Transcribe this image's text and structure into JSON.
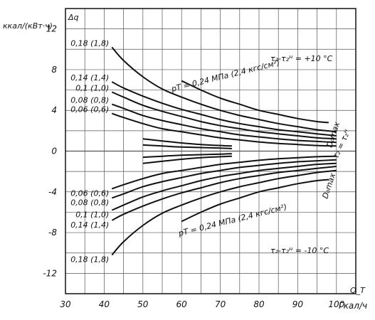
{
  "chart_data": {
    "type": "line",
    "ylabel": "ккал/(кВт·ч)",
    "ysymbol": "Δq",
    "xunit": "Гкал/ч",
    "xsymbol": "Q_T",
    "xlim": [
      30,
      105
    ],
    "ylim": [
      -14,
      14
    ],
    "xticks": [
      "30",
      "40",
      "50",
      "60",
      "70",
      "80",
      "90",
      "100"
    ],
    "yticks": [
      "12",
      "8",
      "4",
      "0",
      "-4",
      "-8",
      "-12"
    ],
    "grid": true,
    "series": [
      {
        "name": "0,18 (1,8)",
        "group": "upper",
        "x": [
          42,
          45,
          50,
          55,
          60,
          65,
          70,
          75,
          80,
          85,
          90,
          95,
          100
        ],
        "y": [
          10.2,
          8.9,
          7.3,
          6.1,
          5.3,
          4.6,
          4.0,
          3.5,
          3.1,
          2.7,
          2.4,
          2.1,
          1.9
        ]
      },
      {
        "name": "0,14 (1,4)",
        "group": "upper",
        "x": [
          42,
          45,
          50,
          55,
          60,
          65,
          70,
          75,
          80,
          85,
          90,
          95,
          100
        ],
        "y": [
          6.8,
          6.2,
          5.4,
          4.7,
          4.1,
          3.6,
          3.1,
          2.7,
          2.4,
          2.1,
          1.9,
          1.7,
          1.5
        ]
      },
      {
        "name": "0,1 (1,0)",
        "group": "upper",
        "x": [
          42,
          45,
          50,
          55,
          60,
          65,
          70,
          75,
          80,
          85,
          90,
          95,
          100
        ],
        "y": [
          5.8,
          5.3,
          4.5,
          3.9,
          3.4,
          2.9,
          2.5,
          2.2,
          1.9,
          1.7,
          1.5,
          1.3,
          1.2
        ]
      },
      {
        "name": "0,08 (0,8)",
        "group": "upper",
        "x": [
          42,
          45,
          50,
          55,
          60,
          65,
          70,
          75,
          80,
          85,
          90,
          95,
          100
        ],
        "y": [
          4.6,
          4.2,
          3.5,
          3.0,
          2.6,
          2.2,
          1.9,
          1.6,
          1.4,
          1.2,
          1.05,
          0.95,
          0.85
        ]
      },
      {
        "name": "0,06 (0,6)",
        "group": "upper",
        "x": [
          42,
          45,
          50,
          55,
          60,
          65,
          70,
          75,
          80,
          85,
          90,
          95,
          100
        ],
        "y": [
          3.7,
          3.3,
          2.7,
          2.2,
          1.9,
          1.6,
          1.3,
          1.1,
          0.9,
          0.75,
          0.65,
          0.55,
          0.5
        ]
      },
      {
        "name": "",
        "group": "upper",
        "x": [
          50,
          55,
          60,
          65,
          70,
          73
        ],
        "y": [
          1.2,
          1.0,
          0.8,
          0.65,
          0.55,
          0.5
        ]
      },
      {
        "name": "",
        "group": "upper",
        "x": [
          50,
          55,
          60,
          65,
          70,
          73
        ],
        "y": [
          0.6,
          0.5,
          0.4,
          0.35,
          0.3,
          0.25
        ]
      },
      {
        "name": "0,24 МПа (2,4 кгс/см²)",
        "group": "upper",
        "x": [
          60,
          65,
          70,
          75,
          80,
          85,
          90,
          95,
          98
        ],
        "y": [
          6.9,
          6.0,
          5.2,
          4.6,
          4.0,
          3.6,
          3.2,
          2.9,
          2.8
        ]
      },
      {
        "name": "",
        "group": "lower",
        "x": [
          50,
          55,
          60,
          65,
          70,
          73
        ],
        "y": [
          -0.6,
          -0.5,
          -0.4,
          -0.35,
          -0.3,
          -0.25
        ]
      },
      {
        "name": "",
        "group": "lower",
        "x": [
          50,
          55,
          60,
          65,
          70,
          73
        ],
        "y": [
          -1.2,
          -1.0,
          -0.8,
          -0.65,
          -0.55,
          -0.5
        ]
      },
      {
        "name": "0,06 (0,6)",
        "group": "lower",
        "x": [
          42,
          45,
          50,
          55,
          60,
          65,
          70,
          75,
          80,
          85,
          90,
          95,
          100
        ],
        "y": [
          -3.7,
          -3.3,
          -2.7,
          -2.2,
          -1.9,
          -1.6,
          -1.3,
          -1.1,
          -0.9,
          -0.75,
          -0.65,
          -0.55,
          -0.5
        ]
      },
      {
        "name": "0,08 (0,8)",
        "group": "lower",
        "x": [
          42,
          45,
          50,
          55,
          60,
          65,
          70,
          75,
          80,
          85,
          90,
          95,
          100
        ],
        "y": [
          -4.6,
          -4.2,
          -3.5,
          -3.0,
          -2.6,
          -2.2,
          -1.9,
          -1.6,
          -1.4,
          -1.2,
          -1.05,
          -0.95,
          -0.85
        ]
      },
      {
        "name": "0,1 (1,0)",
        "group": "lower",
        "x": [
          42,
          45,
          50,
          55,
          60,
          65,
          70,
          75,
          80,
          85,
          90,
          95,
          100
        ],
        "y": [
          -5.8,
          -5.3,
          -4.5,
          -3.9,
          -3.4,
          -2.9,
          -2.5,
          -2.2,
          -1.9,
          -1.7,
          -1.5,
          -1.3,
          -1.2
        ]
      },
      {
        "name": "0,14 (1,4)",
        "group": "lower",
        "x": [
          42,
          45,
          50,
          55,
          60,
          65,
          70,
          75,
          80,
          85,
          90,
          95,
          100
        ],
        "y": [
          -6.8,
          -6.2,
          -5.4,
          -4.7,
          -4.1,
          -3.6,
          -3.1,
          -2.7,
          -2.4,
          -2.1,
          -1.9,
          -1.7,
          -1.5
        ]
      },
      {
        "name": "0,18 (1,8)",
        "group": "lower",
        "x": [
          42,
          45,
          50,
          55,
          60,
          65,
          70,
          75,
          80,
          85,
          90,
          95,
          100
        ],
        "y": [
          -10.2,
          -8.9,
          -7.3,
          -6.1,
          -5.3,
          -4.6,
          -4.0,
          -3.5,
          -3.1,
          -2.7,
          -2.4,
          -2.1,
          -1.9
        ]
      },
      {
        "name": "0,24 МПа (2,4 кгс/см²)",
        "group": "lower",
        "x": [
          60,
          65,
          70,
          75,
          80,
          85,
          90,
          95,
          98
        ],
        "y": [
          -6.9,
          -6.0,
          -5.2,
          -4.6,
          -4.0,
          -3.6,
          -3.2,
          -2.9,
          -2.8
        ]
      }
    ],
    "annotations": {
      "top_right": "τ₂-τ₂ᴴ = +10 °C",
      "bottom_right": "τ₂-τ₂ᴴ = -10 °C",
      "middle_right": "τ₂ = τ₂ᴴ",
      "dmax_upper": "D₀max",
      "dmax_lower": "D₀max",
      "p_upper": "pТ = 0,24 МПа (2,4 кгс/см²)",
      "p_lower": "pТ = 0,24 МПа (2,4 кгс/см²)"
    }
  }
}
